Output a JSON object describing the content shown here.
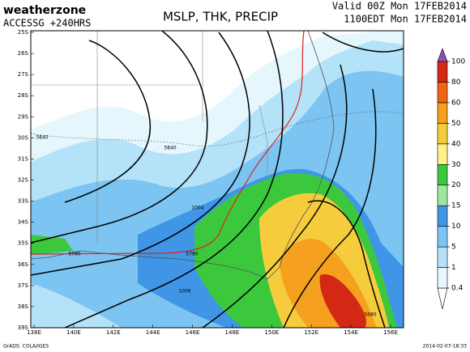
{
  "header": {
    "logo": "weatherzone",
    "model": "ACCESSG +240HRS",
    "title": "MSLP, THK, PRECIP",
    "valid": "Valid 00Z Mon 17FEB2014",
    "local": "1100EDT Mon 17FEB2014"
  },
  "map": {
    "lat_labels": [
      "25S",
      "26S",
      "27S",
      "28S",
      "29S",
      "30S",
      "31S",
      "32S",
      "33S",
      "34S",
      "35S",
      "36S",
      "37S",
      "38S",
      "39S"
    ],
    "lon_labels": [
      "138E",
      "140E",
      "142E",
      "144E",
      "146E",
      "148E",
      "150E",
      "152E",
      "154E",
      "156E"
    ],
    "contour_labels": [
      "5840",
      "5840",
      "1004",
      "5780",
      "5780",
      "1006",
      "5680"
    ],
    "colorbar": {
      "levels": [
        0.4,
        1,
        5,
        10,
        15,
        20,
        30,
        40,
        50,
        60,
        80,
        100
      ],
      "colors": [
        "#ffffff",
        "#e6f6fd",
        "#b4e2f8",
        "#7cc4f2",
        "#3f96e6",
        "#a0e6a0",
        "#3cc83c",
        "#fff08c",
        "#f5cd3c",
        "#f5a01e",
        "#f06414",
        "#d22814",
        "#a00000",
        "#8c50b4"
      ]
    }
  },
  "footer": {
    "source": "GrADS: COLA/IGES",
    "stamp": "2014-02-07-18:33"
  }
}
